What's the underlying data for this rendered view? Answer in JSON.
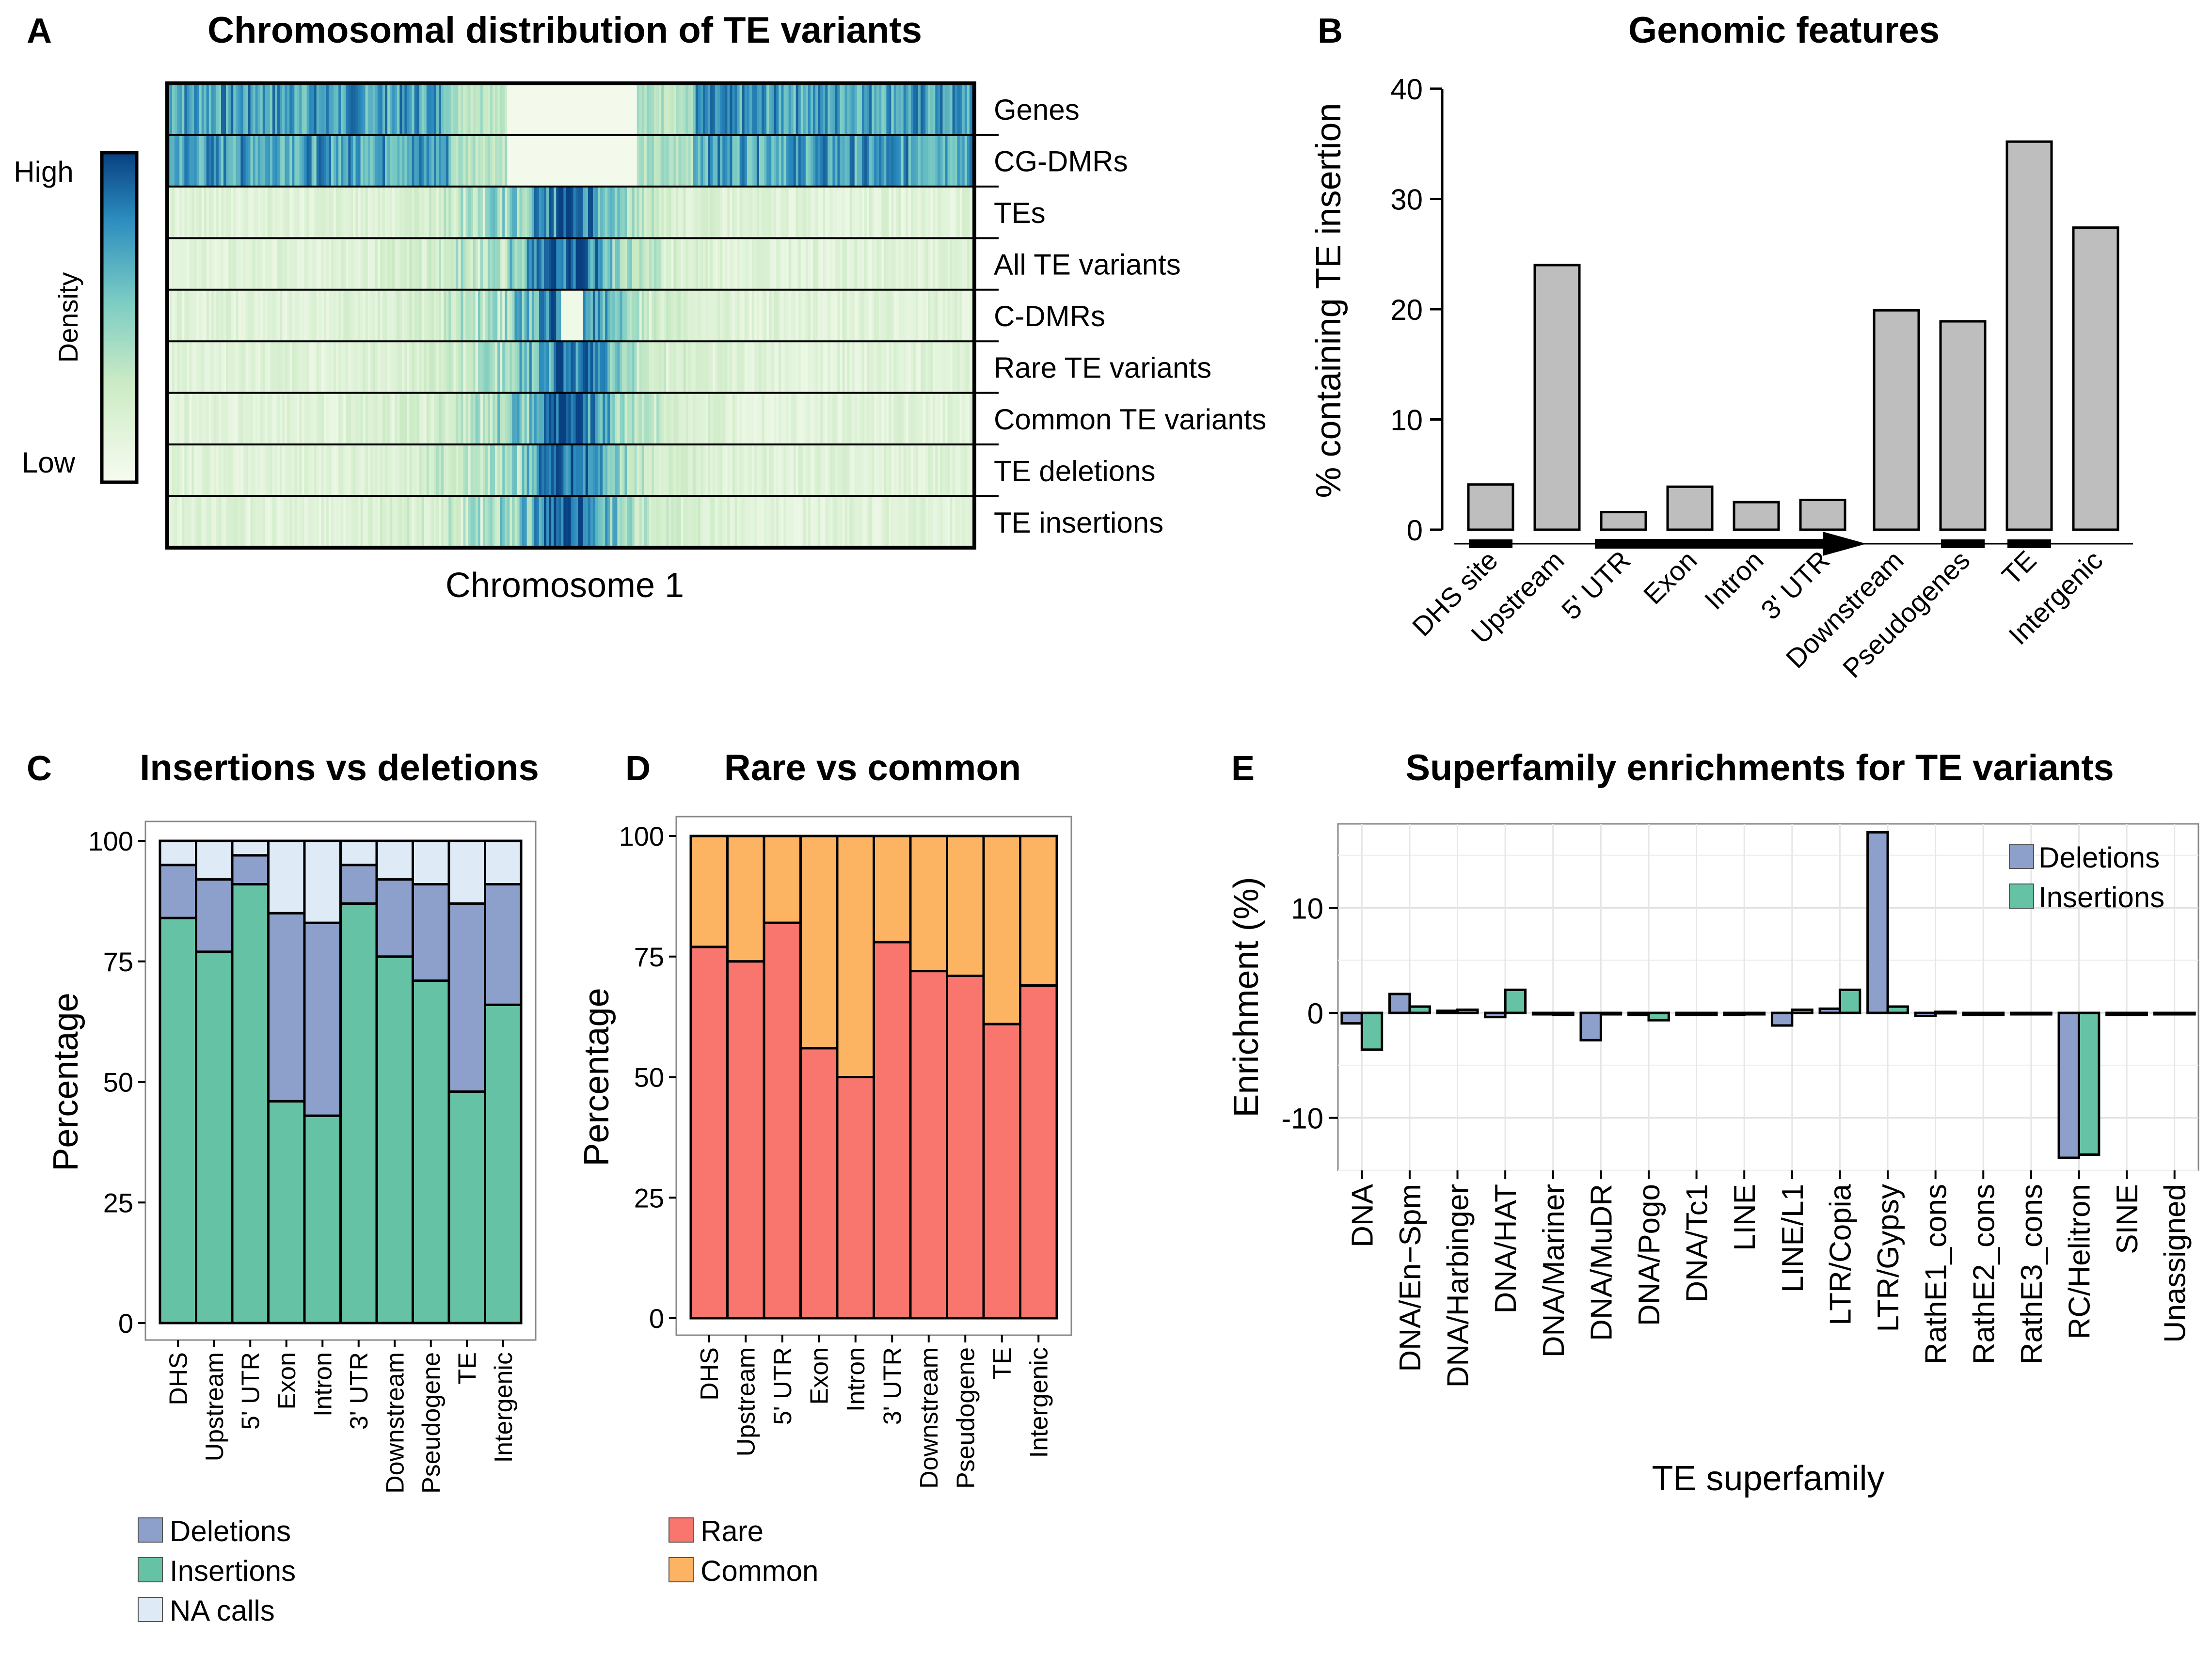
{
  "chart_data": [
    {
      "panel": "A",
      "type": "heatmap",
      "title": "Chromosomal distribution of TE variants",
      "xlabel": "Chromosome 1",
      "rows": [
        "Genes",
        "CG-DMRs",
        "TEs",
        "All TE variants",
        "C-DMRs",
        "Rare TE variants",
        "Common TE variants",
        "TE deletions",
        "TE insertions"
      ],
      "legend": {
        "title": "Density",
        "high": "High",
        "low": "Low",
        "colors": [
          "#f7fcf0",
          "#ccebc5",
          "#7bccc4",
          "#2b8cbe",
          "#084081"
        ]
      },
      "note": "Gene-rich rows (Genes, CG-DMRs) dense along arms; TE-related rows concentrated at pericentromere (~50% of chromosome)"
    },
    {
      "panel": "B",
      "type": "bar",
      "title": "Genomic features",
      "ylabel": "% containing TE insertion",
      "categories": [
        "DHS site",
        "Upstream",
        "5' UTR",
        "Exon",
        "Intron",
        "3' UTR",
        "Downstream",
        "Pseudogenes",
        "TE",
        "Intergenic"
      ],
      "values": [
        4.1,
        24.0,
        1.6,
        3.9,
        2.5,
        2.7,
        19.9,
        18.9,
        35.2,
        27.4
      ],
      "ylim": [
        0,
        40
      ],
      "yticks": [
        0,
        10,
        20,
        30,
        40
      ],
      "color": "#bebebe"
    },
    {
      "panel": "C",
      "type": "bar",
      "stacked": true,
      "title": "Insertions vs deletions",
      "ylabel": "Percentage",
      "categories": [
        "DHS",
        "Upstream",
        "5' UTR",
        "Exon",
        "Intron",
        "3' UTR",
        "Downstream",
        "Pseudogene",
        "TE",
        "Intergenic"
      ],
      "series": [
        {
          "name": "Insertions",
          "color": "#66c2a5",
          "values": [
            84,
            77,
            91,
            46,
            43,
            87,
            76,
            71,
            48,
            66
          ]
        },
        {
          "name": "Deletions",
          "color": "#8da0cb",
          "values": [
            11,
            15,
            6,
            39,
            40,
            8,
            16,
            20,
            39,
            25
          ]
        },
        {
          "name": "NA calls",
          "color": "#deebf7",
          "values": [
            5,
            8,
            3,
            15,
            17,
            5,
            8,
            9,
            13,
            9
          ]
        }
      ],
      "ylim": [
        0,
        100
      ],
      "yticks": [
        0,
        25,
        50,
        75,
        100
      ],
      "legend_order": [
        "Deletions",
        "Insertions",
        "NA calls"
      ]
    },
    {
      "panel": "D",
      "type": "bar",
      "stacked": true,
      "title": "Rare vs common",
      "ylabel": "Percentage",
      "categories": [
        "DHS",
        "Upstream",
        "5' UTR",
        "Exon",
        "Intron",
        "3' UTR",
        "Downstream",
        "Pseudogene",
        "TE",
        "Intergenic"
      ],
      "series": [
        {
          "name": "Rare",
          "color": "#f8766d",
          "values": [
            77,
            74,
            82,
            56,
            50,
            78,
            72,
            71,
            61,
            69
          ]
        },
        {
          "name": "Common",
          "color": "#fdb462",
          "values": [
            23,
            26,
            18,
            44,
            50,
            22,
            28,
            29,
            39,
            31
          ]
        }
      ],
      "ylim": [
        0,
        100
      ],
      "yticks": [
        0,
        25,
        50,
        75,
        100
      ]
    },
    {
      "panel": "E",
      "type": "bar",
      "grouped": true,
      "title": "Superfamily enrichments for TE variants",
      "xlabel": "TE superfamily",
      "ylabel": "Enrichment (%)",
      "categories": [
        "DNA",
        "DNA/En−Spm",
        "DNA/Harbinger",
        "DNA/HAT",
        "DNA/Mariner",
        "DNA/MuDR",
        "DNA/Pogo",
        "DNA/Tc1",
        "LINE",
        "LINE/L1",
        "LTR/Copia",
        "LTR/Gypsy",
        "RathE1_cons",
        "RathE2_cons",
        "RathE3_cons",
        "RC/Helitron",
        "SINE",
        "Unassigned"
      ],
      "series": [
        {
          "name": "Deletions",
          "color": "#8da0cb",
          "values": [
            -1.0,
            1.8,
            0.2,
            -0.4,
            -0.1,
            -2.6,
            -0.2,
            -0.2,
            -0.2,
            -1.2,
            0.4,
            17.2,
            -0.3,
            -0.2,
            -0.1,
            -13.8,
            -0.2,
            -0.1
          ]
        },
        {
          "name": "Insertions",
          "color": "#66c2a5",
          "values": [
            -3.5,
            0.6,
            0.3,
            2.2,
            -0.2,
            -0.1,
            -0.7,
            -0.2,
            -0.1,
            0.3,
            2.2,
            0.6,
            0.1,
            -0.2,
            -0.1,
            -13.5,
            -0.2,
            -0.1
          ]
        }
      ],
      "ylim": [
        -15,
        18
      ],
      "yticks": [
        -10,
        0,
        10
      ],
      "grid": true,
      "legend": "top-right"
    }
  ],
  "panels": {
    "A": {
      "label": "A"
    },
    "B": {
      "label": "B"
    },
    "C": {
      "label": "C"
    },
    "D": {
      "label": "D"
    },
    "E": {
      "label": "E"
    }
  }
}
